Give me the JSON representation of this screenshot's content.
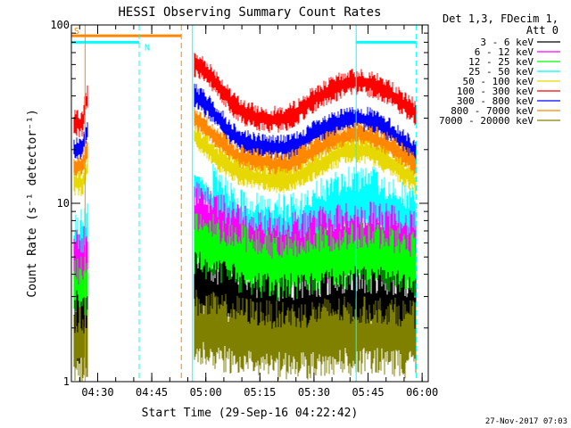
{
  "chart_data": {
    "type": "line",
    "title": "HESSI Observing Summary Count Rates",
    "xlabel": "Start Time (29-Sep-16 04:22:42)",
    "ylabel": "Count Rate (s⁻¹ detector⁻¹)",
    "yscale": "log",
    "ylim": [
      1,
      100
    ],
    "xlim_minutes": [
      0,
      99
    ],
    "x_ticks": [
      {
        "label": "04:30",
        "t": 7.3
      },
      {
        "label": "04:45",
        "t": 22.3
      },
      {
        "label": "05:00",
        "t": 37.3
      },
      {
        "label": "05:15",
        "t": 52.3
      },
      {
        "label": "05:30",
        "t": 67.3
      },
      {
        "label": "05:45",
        "t": 82.3
      },
      {
        "label": "06:00",
        "t": 97.3
      }
    ],
    "y_ticks": [
      {
        "label": "1",
        "v": 1
      },
      {
        "label": "10",
        "v": 10
      },
      {
        "label": "100",
        "v": 100
      }
    ],
    "legend": {
      "header": [
        "Det 1,3, FDecim 1,",
        "Att 0"
      ],
      "placement": "right"
    },
    "series": [
      {
        "name": "3 - 6 keV",
        "color": "#000000"
      },
      {
        "name": "6 - 12 keV",
        "color": "#ff00ff"
      },
      {
        "name": "12 - 25 keV",
        "color": "#00ff00"
      },
      {
        "name": "25 - 50 keV",
        "color": "#00ffff"
      },
      {
        "name": "50 - 100 keV",
        "color": "#e6d800"
      },
      {
        "name": "100 - 300 keV",
        "color": "#ff0000"
      },
      {
        "name": "300 - 800 keV",
        "color": "#0000ff"
      },
      {
        "name": "800 - 7000 keV",
        "color": "#ff8800"
      },
      {
        "name": "7000 - 20000 keV",
        "color": "#808000"
      }
    ],
    "data_intervals": [
      {
        "start": 0.5,
        "end": 4.5
      },
      {
        "start": 34.0,
        "end": 95.7
      }
    ],
    "envelopes": [
      {
        "series": 5,
        "points": [
          [
            0.5,
            28
          ],
          [
            3.0,
            28
          ],
          [
            4.5,
            40
          ],
          [
            34,
            60
          ],
          [
            36,
            58
          ],
          [
            40,
            48
          ],
          [
            44,
            37
          ],
          [
            48,
            32
          ],
          [
            52,
            30
          ],
          [
            56,
            29.5
          ],
          [
            60,
            30
          ],
          [
            64,
            34
          ],
          [
            68,
            39
          ],
          [
            72,
            43
          ],
          [
            76,
            47
          ],
          [
            80,
            48.5
          ],
          [
            84,
            46
          ],
          [
            88,
            42
          ],
          [
            92,
            36
          ],
          [
            95.7,
            32
          ]
        ]
      },
      {
        "series": 6,
        "points": [
          [
            0.5,
            20
          ],
          [
            3.0,
            20
          ],
          [
            4.5,
            26
          ],
          [
            34,
            40
          ],
          [
            36,
            38
          ],
          [
            40,
            31
          ],
          [
            44,
            25
          ],
          [
            48,
            22
          ],
          [
            52,
            21
          ],
          [
            56,
            20.5
          ],
          [
            60,
            20.5
          ],
          [
            64,
            22
          ],
          [
            68,
            25
          ],
          [
            72,
            27
          ],
          [
            76,
            29
          ],
          [
            80,
            30
          ],
          [
            84,
            28.5
          ],
          [
            88,
            25.5
          ],
          [
            92,
            22
          ],
          [
            95.7,
            19
          ]
        ]
      },
      {
        "series": 7,
        "points": [
          [
            0.5,
            16
          ],
          [
            3.0,
            16
          ],
          [
            4.5,
            20
          ],
          [
            34,
            30
          ],
          [
            36,
            28
          ],
          [
            40,
            23
          ],
          [
            44,
            19.5
          ],
          [
            48,
            17.5
          ],
          [
            52,
            17
          ],
          [
            56,
            16.5
          ],
          [
            60,
            16.5
          ],
          [
            64,
            18
          ],
          [
            68,
            20
          ],
          [
            72,
            22
          ],
          [
            76,
            23.5
          ],
          [
            80,
            24
          ],
          [
            84,
            23
          ],
          [
            88,
            21
          ],
          [
            92,
            18.5
          ],
          [
            95.7,
            16
          ]
        ]
      },
      {
        "series": 4,
        "points": [
          [
            0.5,
            13
          ],
          [
            3.0,
            13
          ],
          [
            4.5,
            16
          ],
          [
            34,
            24
          ],
          [
            36,
            22
          ],
          [
            40,
            18.5
          ],
          [
            44,
            16
          ],
          [
            48,
            14.5
          ],
          [
            52,
            14
          ],
          [
            56,
            13.5
          ],
          [
            60,
            13.5
          ],
          [
            64,
            14.5
          ],
          [
            68,
            16
          ],
          [
            72,
            18
          ],
          [
            76,
            19.5
          ],
          [
            80,
            20
          ],
          [
            84,
            19
          ],
          [
            88,
            17
          ],
          [
            92,
            15
          ],
          [
            95.7,
            13
          ]
        ]
      },
      {
        "series": 3,
        "points": [
          [
            0.5,
            5
          ],
          [
            4.5,
            6
          ],
          [
            34,
            13
          ],
          [
            36,
            12
          ],
          [
            40,
            9.5
          ],
          [
            44,
            8
          ],
          [
            48,
            7.2
          ],
          [
            52,
            7
          ],
          [
            56,
            6.8
          ],
          [
            60,
            6.8
          ],
          [
            64,
            7
          ],
          [
            68,
            8
          ],
          [
            72,
            9
          ],
          [
            76,
            9.8
          ],
          [
            80,
            10
          ],
          [
            84,
            9.6
          ],
          [
            88,
            8.8
          ],
          [
            92,
            8
          ],
          [
            95.7,
            7.2
          ]
        ]
      },
      {
        "series": 1,
        "points": [
          [
            0.5,
            4.5
          ],
          [
            4.5,
            4.5
          ],
          [
            34,
            8
          ],
          [
            40,
            7
          ],
          [
            48,
            6
          ],
          [
            56,
            5.5
          ],
          [
            64,
            5.5
          ],
          [
            72,
            6
          ],
          [
            80,
            6.2
          ],
          [
            88,
            6
          ],
          [
            95.7,
            5.5
          ]
        ]
      },
      {
        "series": 2,
        "points": [
          [
            0.5,
            3
          ],
          [
            4.5,
            3
          ],
          [
            34,
            6
          ],
          [
            40,
            5.2
          ],
          [
            48,
            4.6
          ],
          [
            56,
            4.2
          ],
          [
            64,
            4.3
          ],
          [
            72,
            4.6
          ],
          [
            80,
            4.8
          ],
          [
            88,
            4.6
          ],
          [
            95.7,
            4.2
          ]
        ]
      },
      {
        "series": 0,
        "points": [
          [
            0.5,
            2
          ],
          [
            4.5,
            2
          ],
          [
            34,
            3.4
          ],
          [
            40,
            3
          ],
          [
            48,
            2.6
          ],
          [
            56,
            2.4
          ],
          [
            64,
            2.5
          ],
          [
            72,
            2.6
          ],
          [
            80,
            2.7
          ],
          [
            88,
            2.6
          ],
          [
            95.7,
            2.5
          ]
        ]
      },
      {
        "series": 8,
        "points": [
          [
            0.5,
            1.6
          ],
          [
            4.5,
            1.6
          ],
          [
            34,
            2
          ],
          [
            40,
            1.9
          ],
          [
            48,
            1.8
          ],
          [
            56,
            1.7
          ],
          [
            64,
            1.7
          ],
          [
            72,
            1.8
          ],
          [
            80,
            1.8
          ],
          [
            88,
            1.8
          ],
          [
            95.7,
            1.7
          ]
        ]
      }
    ],
    "flags": [
      {
        "label": "S",
        "color": "#ff8800",
        "start": 0,
        "end": 30.5,
        "level": 87
      },
      {
        "label": "N",
        "color": "#00ffff",
        "start": 0,
        "end": 18.8,
        "level": 80
      },
      {
        "label": "",
        "color": "#00ffff",
        "start": 79.0,
        "end": 95.7,
        "level": 80
      }
    ],
    "markers": [
      {
        "t": 3.8,
        "color": "#ff8800",
        "style": "solid"
      },
      {
        "t": 18.8,
        "color": "#00ffff",
        "style": "dashed"
      },
      {
        "t": 30.5,
        "color": "#ff8800",
        "style": "dashed"
      },
      {
        "t": 33.6,
        "color": "#00ffff",
        "style": "solid"
      },
      {
        "t": 79.0,
        "color": "#00ffff",
        "style": "solid"
      },
      {
        "t": 95.7,
        "color": "#00ffff",
        "style": "dashed"
      }
    ],
    "footer": "27-Nov-2017 07:03",
    "grid": false
  }
}
